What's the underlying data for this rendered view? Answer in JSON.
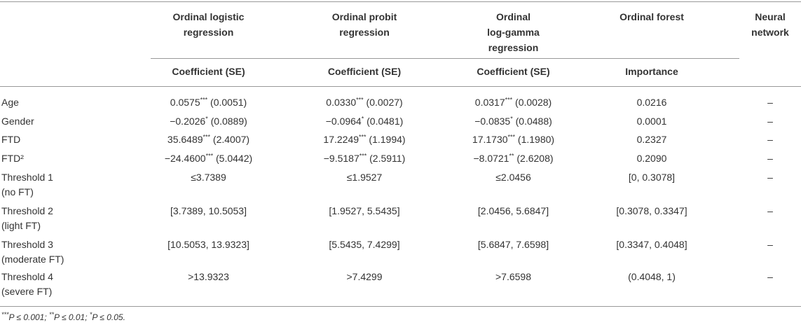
{
  "table": {
    "header": [
      [
        "Ordinal logistic",
        "regression"
      ],
      [
        "Ordinal probit",
        "regression"
      ],
      [
        "Ordinal",
        "log-gamma",
        "regression"
      ],
      [
        "Ordinal forest"
      ],
      [
        "Neural",
        "network"
      ]
    ],
    "subheader": [
      "Coefficient (SE)",
      "Coefficient (SE)",
      "Coefficient (SE)",
      "Importance"
    ],
    "rows": [
      {
        "label": [
          "Age"
        ],
        "cells": [
          "0.0575*** (0.0051)",
          "0.0330*** (0.0027)",
          "0.0317*** (0.0028)",
          "0.0216",
          "–"
        ]
      },
      {
        "label": [
          "Gender"
        ],
        "cells": [
          "−0.2026* (0.0889)",
          "−0.0964* (0.0481)",
          "−0.0835* (0.0488)",
          "0.0001",
          "–"
        ]
      },
      {
        "label": [
          "FTD"
        ],
        "cells": [
          "35.6489*** (2.4007)",
          "17.2249*** (1.1994)",
          "17.1730*** (1.1980)",
          "0.2327",
          "–"
        ]
      },
      {
        "label": [
          "FTD²"
        ],
        "cells": [
          "−24.4600*** (5.0442)",
          "−9.5187*** (2.5911)",
          "−8.0721** (2.6208)",
          "0.2090",
          "–"
        ]
      },
      {
        "label": [
          "Threshold 1",
          "(no FT)"
        ],
        "cells": [
          "≤3.7389",
          "≤1.9527",
          "≤2.0456",
          "[0, 0.3078]",
          "–"
        ]
      },
      {
        "label": [
          "Threshold 2",
          "(light FT)"
        ],
        "cells": [
          "[3.7389, 10.5053]",
          "[1.9527, 5.5435]",
          "[2.0456, 5.6847]",
          "[0.3078, 0.3347]",
          "–"
        ]
      },
      {
        "label": [
          "Threshold 3",
          "(moderate FT)"
        ],
        "cells": [
          "[10.5053, 13.9323]",
          "[5.5435, 7.4299]",
          "[5.6847, 7.6598]",
          "[0.3347, 0.4048]",
          "–"
        ]
      },
      {
        "label": [
          "Threshold 4",
          "(severe FT)"
        ],
        "cells": [
          ">13.9323",
          ">7.4299",
          ">7.6598",
          "(0.4048, 1)",
          "–"
        ]
      }
    ],
    "footnote": "***P ≤ 0.001; **P ≤ 0.01; *P ≤ 0.05."
  }
}
